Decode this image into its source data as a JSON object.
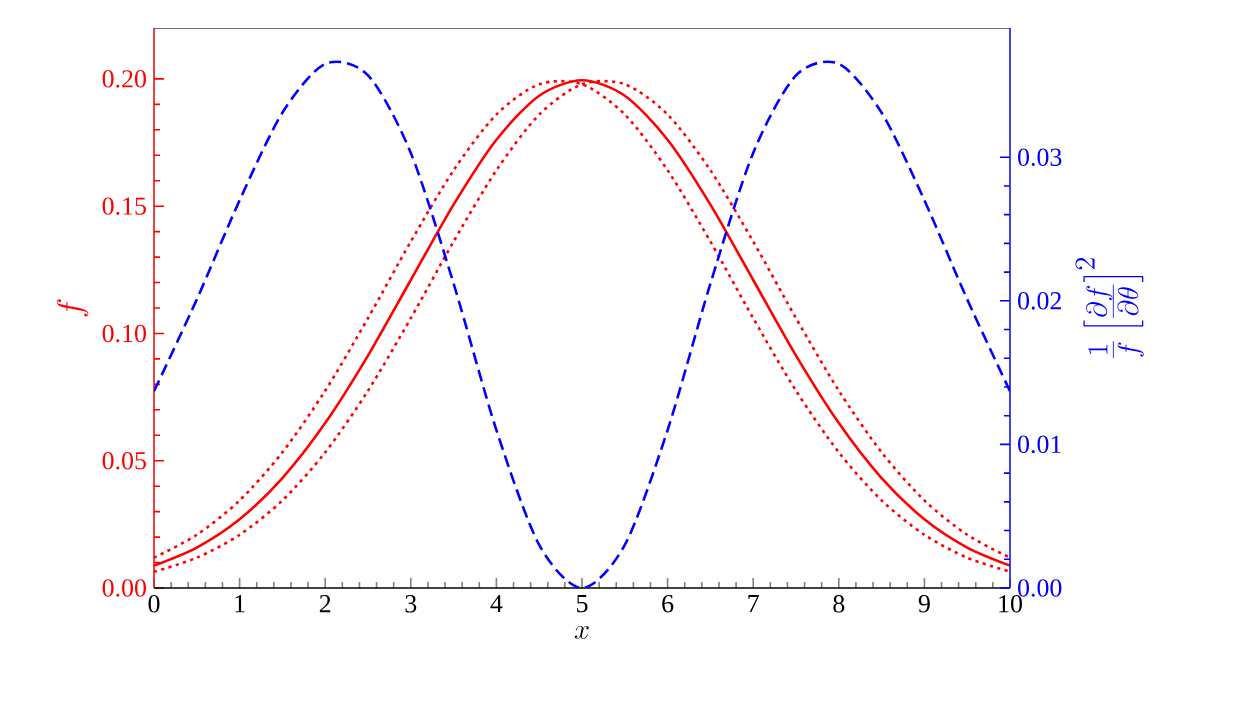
{
  "chart_data": {
    "type": "line",
    "xlabel": "x",
    "ylabel": "f",
    "y2label": "\\frac{1}{f}\\left[\\frac{\\partial f}{\\partial \\theta}\\right]^2",
    "x": [
      0,
      0.5,
      1,
      1.5,
      2,
      2.5,
      3,
      3.5,
      4,
      4.5,
      5,
      5.5,
      6,
      6.5,
      7,
      7.5,
      8,
      8.5,
      9,
      9.5,
      10
    ],
    "series": [
      {
        "color": "#ff0000",
        "line_style": "solid",
        "axis": "y",
        "values": [
          0.0088,
          0.0159,
          0.027,
          0.0432,
          0.0648,
          0.0913,
          0.121,
          0.1506,
          0.1761,
          0.1934,
          0.1995,
          0.1934,
          0.1761,
          0.1506,
          0.121,
          0.0913,
          0.0648,
          0.0432,
          0.027,
          0.0159,
          0.0088
        ]
      },
      {
        "color": "#ff0000",
        "line_style": "dotted",
        "axis": "y",
        "values": [
          0.0119,
          0.0209,
          0.0344,
          0.0533,
          0.0775,
          0.106,
          0.1361,
          0.1641,
          0.186,
          0.1979,
          0.1979,
          0.186,
          0.1641,
          0.1361,
          0.106,
          0.0775,
          0.0533,
          0.0344,
          0.0209,
          0.0119,
          0.0064
        ]
      },
      {
        "color": "#ff0000",
        "line_style": "dotted",
        "axis": "y",
        "values": [
          0.0064,
          0.0119,
          0.0209,
          0.0344,
          0.0533,
          0.0775,
          0.106,
          0.1361,
          0.1641,
          0.186,
          0.1979,
          0.1979,
          0.186,
          0.1641,
          0.1361,
          0.106,
          0.0775,
          0.0533,
          0.0344,
          0.0209,
          0.0119
        ]
      },
      {
        "color": "#0000ff",
        "line_style": "dashed",
        "axis": "y2",
        "values": [
          0.0137,
          0.0201,
          0.027,
          0.0331,
          0.0365,
          0.0357,
          0.0303,
          0.0212,
          0.011,
          0.003,
          0,
          0.003,
          0.011,
          0.0212,
          0.0303,
          0.0357,
          0.0365,
          0.0331,
          0.027,
          0.0201,
          0.0137
        ]
      }
    ],
    "xlim": [
      0,
      10
    ],
    "xticks": [
      0,
      1,
      2,
      3,
      4,
      5,
      6,
      7,
      8,
      9,
      10
    ],
    "ylim": [
      0,
      0.22
    ],
    "yticks": [
      {
        "value": 0,
        "label": "0.00"
      },
      {
        "value": 0.05,
        "label": "0.05"
      },
      {
        "value": 0.1,
        "label": "0.10"
      },
      {
        "value": 0.15,
        "label": "0.15"
      },
      {
        "value": 0.2,
        "label": "0.20"
      }
    ],
    "y2lim": [
      0,
      0.039
    ],
    "y2ticks": [
      {
        "value": 0,
        "label": "0.00"
      },
      {
        "value": 0.01,
        "label": "0.01"
      },
      {
        "value": 0.02,
        "label": "0.02"
      },
      {
        "value": 0.03,
        "label": "0.03"
      }
    ],
    "marker": "none"
  }
}
